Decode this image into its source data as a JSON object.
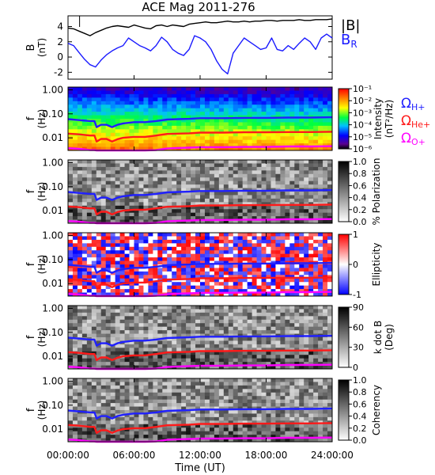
{
  "chart_data": {
    "title": "ACE Mag 2011-276",
    "xlabel": "Time (UT)",
    "x_ticks": [
      "00:00:00",
      "06:00:00",
      "12:00:00",
      "18:00:00",
      "24:00:00"
    ],
    "xlim_hours": [
      0,
      24
    ],
    "freq_ticks": [
      "1.00",
      "0.10",
      "0.01"
    ],
    "freq_axis": {
      "label": "f",
      "unit": "(Hz)",
      "scale": "log",
      "range": [
        0.003,
        1.3
      ]
    },
    "panels": [
      {
        "id": "bfield",
        "type": "line",
        "ylabel": "B",
        "yunit": "(nT)",
        "y_ticks": [
          "4",
          "2",
          "0",
          "-2"
        ],
        "ylim": [
          -2.9,
          5.4
        ],
        "legend": [
          "|B|",
          "B",
          "R"
        ],
        "series": [
          {
            "name": "|B|",
            "color": "#000000",
            "x": [
              0,
              0.5,
              1,
              1.5,
              2,
              2.5,
              3,
              3.5,
              4,
              4.5,
              5,
              5.5,
              6,
              6.5,
              7,
              7.5,
              8,
              8.5,
              9,
              9.5,
              10,
              10.5,
              11,
              11.5,
              12,
              12.5,
              13,
              13.5,
              14,
              14.5,
              15,
              15.5,
              16,
              16.5,
              17,
              17.5,
              18,
              18.5,
              19,
              19.5,
              20,
              20.5,
              21,
              21.5,
              22,
              22.5,
              23,
              23.5,
              24
            ],
            "values": [
              3.8,
              3.7,
              3.4,
              3.1,
              2.8,
              3.2,
              3.5,
              3.8,
              4.0,
              4.1,
              4.0,
              3.9,
              4.2,
              4.0,
              3.8,
              3.7,
              4.1,
              4.2,
              4.0,
              4.2,
              4.1,
              4.0,
              4.3,
              4.4,
              4.5,
              4.6,
              4.5,
              4.5,
              4.6,
              4.7,
              4.6,
              4.6,
              4.7,
              4.6,
              4.7,
              4.7,
              4.8,
              4.8,
              4.7,
              4.8,
              4.8,
              4.8,
              4.9,
              4.8,
              4.8,
              4.9,
              4.9,
              4.9,
              5.0
            ]
          },
          {
            "name": "B_R",
            "color": "#1a1aff",
            "x": [
              0,
              0.5,
              1,
              1.5,
              2,
              2.5,
              3,
              3.5,
              4,
              4.5,
              5,
              5.5,
              6,
              6.5,
              7,
              7.5,
              8,
              8.5,
              9,
              9.5,
              10,
              10.5,
              11,
              11.5,
              12,
              12.5,
              13,
              13.5,
              14,
              14.5,
              15,
              15.5,
              16,
              16.5,
              17,
              17.5,
              18,
              18.5,
              19,
              19.5,
              20,
              20.5,
              21,
              21.5,
              22,
              22.5,
              23,
              23.5,
              24
            ],
            "values": [
              1.8,
              1.5,
              0.6,
              -0.3,
              -1.0,
              -1.3,
              -0.4,
              0.3,
              0.8,
              1.2,
              1.5,
              2.5,
              2.0,
              1.5,
              1.2,
              0.8,
              1.5,
              2.6,
              2.0,
              1.0,
              0.5,
              0.2,
              1.0,
              2.8,
              2.5,
              2.0,
              1.0,
              -0.5,
              -1.6,
              -2.2,
              0.5,
              1.5,
              2.5,
              2.0,
              1.5,
              1.0,
              1.2,
              2.5,
              1.0,
              0.8,
              1.5,
              1.0,
              1.8,
              2.5,
              2.0,
              1.0,
              2.5,
              3.0,
              2.5
            ]
          }
        ]
      },
      {
        "id": "intensity",
        "type": "heatmap",
        "colormap": "rainbow",
        "colorbar_label": "Intensity",
        "colorbar_unit": "(nT²/Hz)",
        "colorbar_ticks": [
          "10⁻¹",
          "10⁻²",
          "10⁻³",
          "10⁻⁴",
          "10⁻⁵",
          "10⁻⁶"
        ]
      },
      {
        "id": "polarization",
        "type": "heatmap",
        "colormap": "gray",
        "colorbar_label": "% Polarization",
        "colorbar_ticks": [
          "1.0",
          "0.8",
          "0.6",
          "0.4",
          "0.2",
          "0.0"
        ]
      },
      {
        "id": "ellipticity",
        "type": "heatmap",
        "colormap": "diverging",
        "colorbar_label": "Ellipticity",
        "colorbar_ticks": [
          "1",
          "0",
          "-1"
        ]
      },
      {
        "id": "kdotb",
        "type": "heatmap",
        "colormap": "gray",
        "colorbar_label": "k dot B",
        "colorbar_unit": "(Deg)",
        "colorbar_ticks": [
          "90",
          "60",
          "30",
          "0"
        ]
      },
      {
        "id": "coherency",
        "type": "heatmap",
        "colormap": "gray",
        "colorbar_label": "Coherency",
        "colorbar_ticks": [
          "1.0",
          "0.8",
          "0.6",
          "0.4",
          "0.2",
          "0.0"
        ]
      }
    ],
    "gyro_lines": {
      "legend": [
        {
          "symbol": "Ω",
          "sub": "H+",
          "color": "#2020ff"
        },
        {
          "symbol": "Ω",
          "sub": "He+",
          "color": "#ff1a1a"
        },
        {
          "symbol": "Ω",
          "sub": "O+",
          "color": "#ff00ff"
        }
      ],
      "x": [
        0,
        1,
        2,
        2.4,
        2.6,
        3,
        3.5,
        4,
        4.5,
        5,
        6,
        7,
        8,
        9,
        10,
        11,
        12,
        14,
        16,
        18,
        20,
        22,
        24
      ],
      "series": [
        {
          "name": "Ω H+",
          "color": "#2020ff",
          "values": [
            0.06,
            0.055,
            0.05,
            0.05,
            0.028,
            0.035,
            0.035,
            0.028,
            0.035,
            0.04,
            0.045,
            0.045,
            0.05,
            0.058,
            0.06,
            0.062,
            0.066,
            0.066,
            0.068,
            0.068,
            0.07,
            0.07,
            0.072
          ]
        },
        {
          "name": "Ω He+",
          "color": "#ff1a1a",
          "values": [
            0.015,
            0.014,
            0.0125,
            0.0125,
            0.007,
            0.009,
            0.009,
            0.007,
            0.0088,
            0.01,
            0.011,
            0.011,
            0.0125,
            0.0145,
            0.015,
            0.0155,
            0.0165,
            0.0165,
            0.017,
            0.017,
            0.0175,
            0.0175,
            0.018
          ]
        },
        {
          "name": "Ω O+",
          "color": "#ff00ff",
          "values": [
            0.0037,
            0.0035,
            0.0031,
            0.0031,
            0.003,
            0.003,
            0.003,
            0.003,
            0.003,
            0.003,
            0.003,
            0.003,
            0.0031,
            0.0036,
            0.0038,
            0.0039,
            0.0041,
            0.0041,
            0.0042,
            0.0042,
            0.0044,
            0.0044,
            0.0045
          ]
        }
      ]
    }
  }
}
